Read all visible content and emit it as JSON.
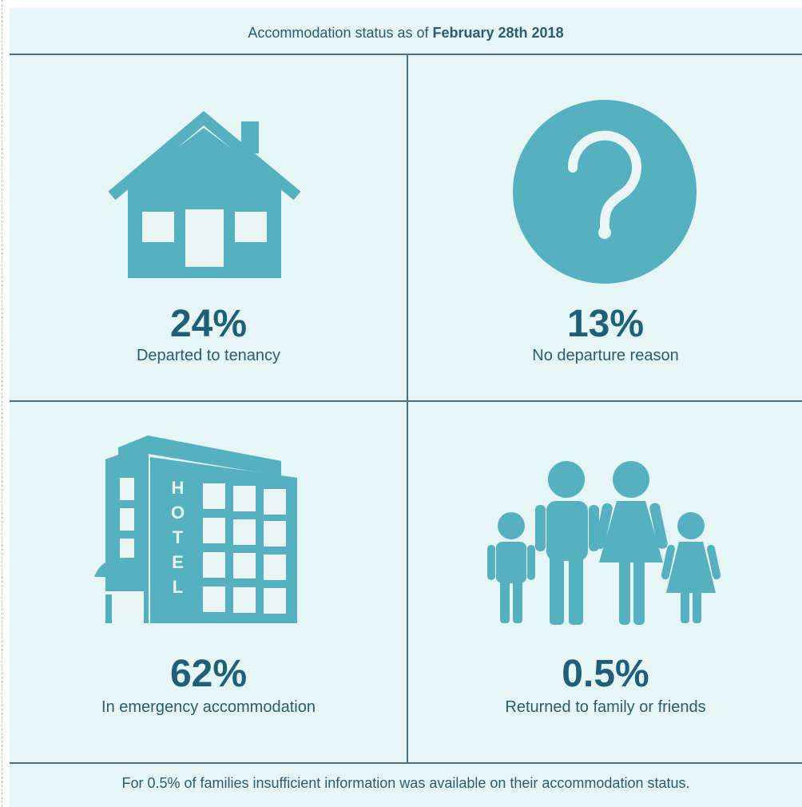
{
  "header": {
    "prefix": "Accommodation status as of",
    "date": "February 28th 2018"
  },
  "cells": [
    {
      "value": "24%",
      "label": "Departed to tenancy"
    },
    {
      "value": "13%",
      "label": "No departure reason"
    },
    {
      "value": "62%",
      "label": "In emergency accommodation",
      "icon_text": "HOTEL"
    },
    {
      "value": "0.5%",
      "label": "Returned to family or friends"
    }
  ],
  "footer": "For 0.5% of families insufficient information was available on their accommodation status."
}
